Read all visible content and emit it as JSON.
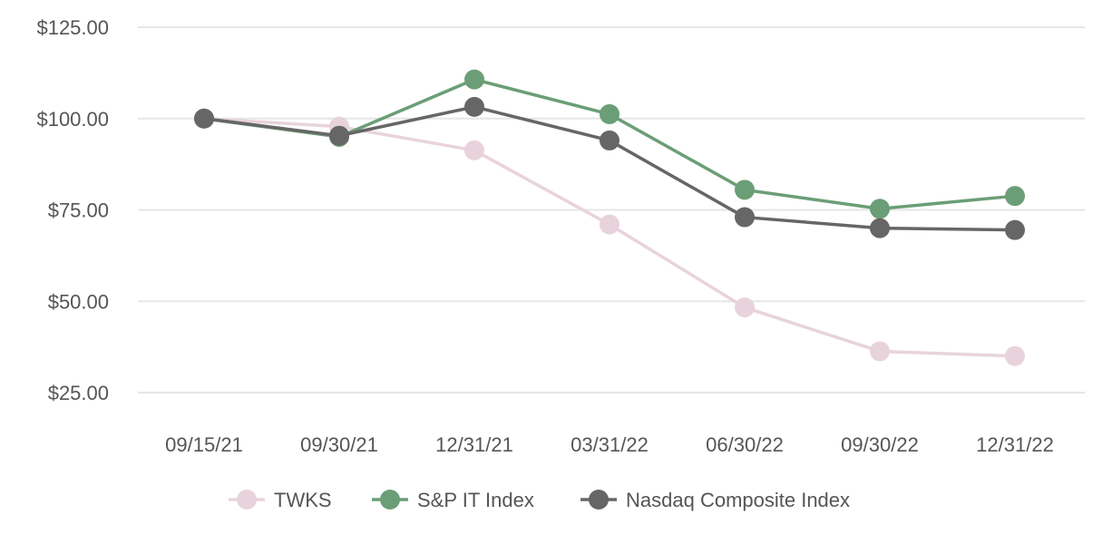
{
  "chart_data": {
    "type": "line",
    "title": "",
    "xlabel": "",
    "ylabel": "",
    "categories": [
      "09/15/21",
      "09/30/21",
      "12/31/21",
      "03/31/22",
      "06/30/22",
      "09/30/22",
      "12/31/22"
    ],
    "ylim": [
      25,
      125
    ],
    "yticks": [
      {
        "value": 125,
        "label": "$125.00"
      },
      {
        "value": 100,
        "label": "$100.00"
      },
      {
        "value": 75,
        "label": "$75.00"
      },
      {
        "value": 50,
        "label": "$50.00"
      },
      {
        "value": 25,
        "label": "$25.00"
      }
    ],
    "grid": true,
    "legend_position": "bottom",
    "series": [
      {
        "name": "TWKS",
        "color": "#e8d3dc",
        "values": [
          100,
          97.8,
          91.3,
          71,
          48.3,
          36.3,
          35
        ]
      },
      {
        "name": "S&P IT Index",
        "color": "#6b9e76",
        "values": [
          100,
          95,
          110.7,
          101.2,
          80.5,
          75.3,
          78.8
        ]
      },
      {
        "name": "Nasdaq Composite Index",
        "color": "#666666",
        "values": [
          100,
          95.3,
          103.2,
          94,
          73,
          70,
          69.5
        ]
      }
    ]
  }
}
